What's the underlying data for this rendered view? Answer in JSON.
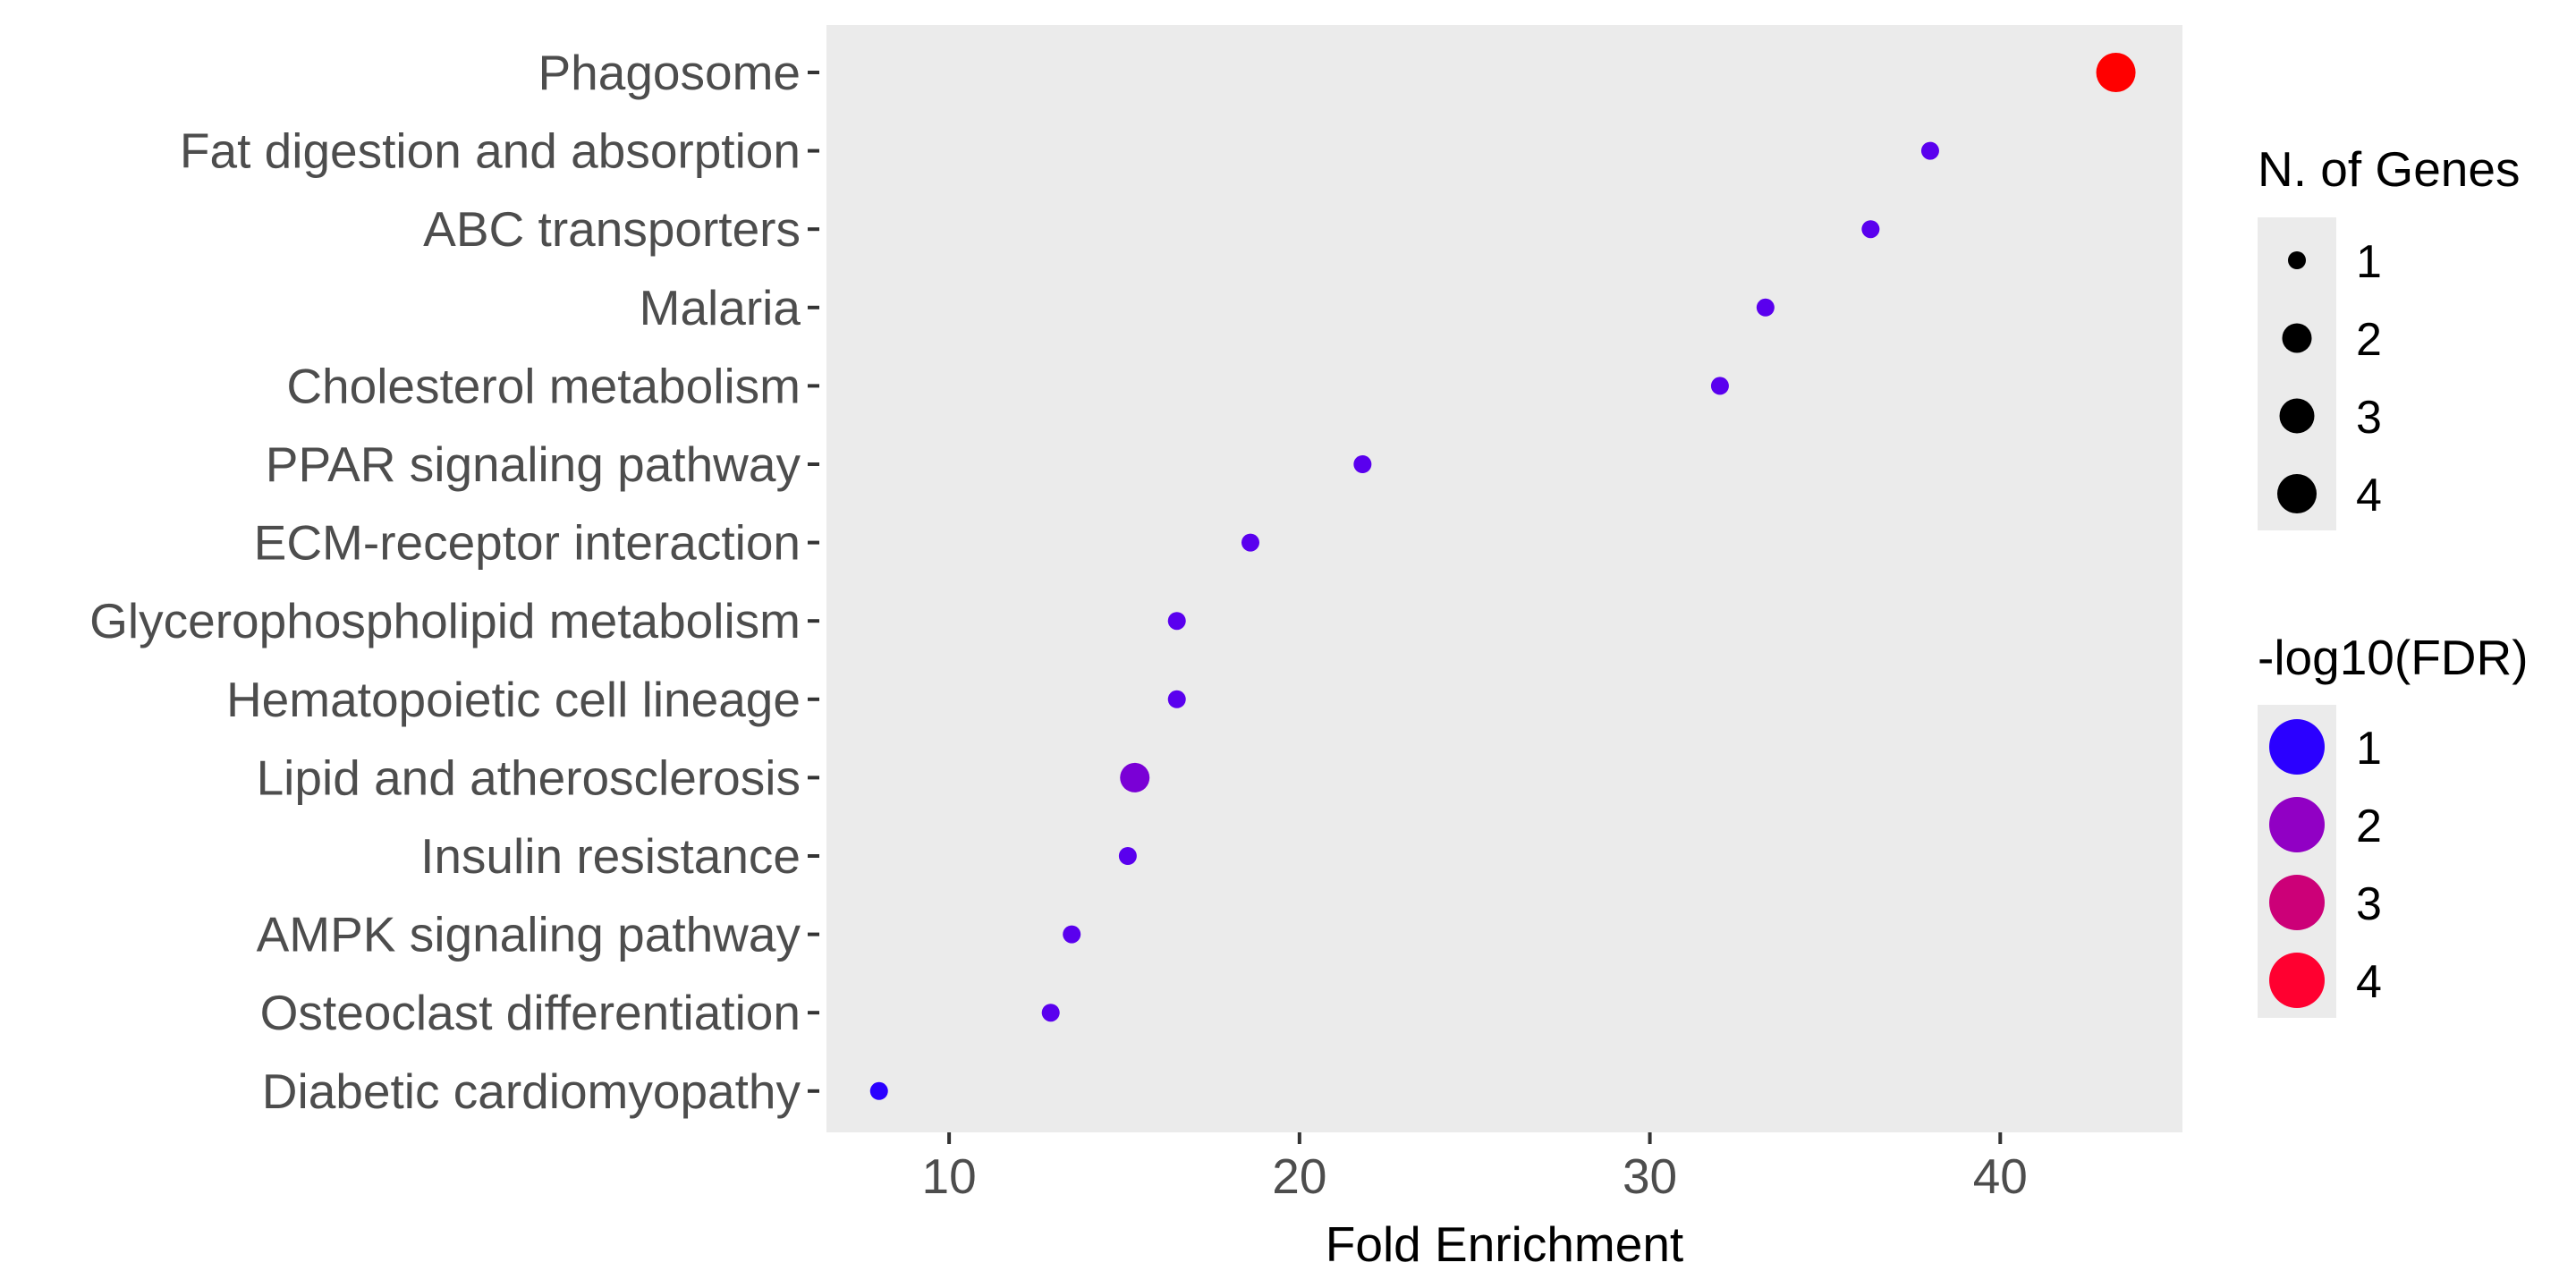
{
  "chart_data": {
    "type": "scatter",
    "title": "",
    "xlabel": "Fold Enrichment",
    "ylabel": "",
    "xlim": [
      6.5,
      45.2
    ],
    "xticks": [
      10,
      20,
      30,
      40
    ],
    "grid": false,
    "panel_background": "#ebebeb",
    "legend_placement": "right",
    "size_legend": {
      "title": "N. of Genes",
      "values": [
        1,
        2,
        3,
        4
      ]
    },
    "color_legend": {
      "title": "-log10(FDR)",
      "values": [
        1,
        2,
        3,
        4
      ],
      "colors": [
        "#2b00ff",
        "#9100c4",
        "#cc0078",
        "#ff0030"
      ]
    },
    "points": [
      {
        "term": "Phagosome",
        "fold_enrichment": 43.3,
        "n_genes": 4,
        "neg_log10_fdr": 4.6,
        "color": "#ff0000"
      },
      {
        "term": "Fat digestion and absorption",
        "fold_enrichment": 38.0,
        "n_genes": 1,
        "neg_log10_fdr": 1.1,
        "color": "#5a00ee"
      },
      {
        "term": "ABC transporters",
        "fold_enrichment": 36.3,
        "n_genes": 1,
        "neg_log10_fdr": 1.1,
        "color": "#5a00ee"
      },
      {
        "term": "Malaria",
        "fold_enrichment": 33.3,
        "n_genes": 1,
        "neg_log10_fdr": 1.1,
        "color": "#5a00ee"
      },
      {
        "term": "Cholesterol metabolism",
        "fold_enrichment": 32.0,
        "n_genes": 1,
        "neg_log10_fdr": 1.1,
        "color": "#5a00ee"
      },
      {
        "term": "PPAR signaling pathway",
        "fold_enrichment": 21.8,
        "n_genes": 1,
        "neg_log10_fdr": 1.1,
        "color": "#5a00ee"
      },
      {
        "term": "ECM-receptor interaction",
        "fold_enrichment": 18.6,
        "n_genes": 1,
        "neg_log10_fdr": 1.1,
        "color": "#5a00ee"
      },
      {
        "term": "Glycerophospholipid metabolism",
        "fold_enrichment": 16.5,
        "n_genes": 1,
        "neg_log10_fdr": 1.1,
        "color": "#5a00ee"
      },
      {
        "term": "Hematopoietic cell lineage",
        "fold_enrichment": 16.5,
        "n_genes": 1,
        "neg_log10_fdr": 1.1,
        "color": "#5a00ee"
      },
      {
        "term": "Lipid and atherosclerosis",
        "fold_enrichment": 15.3,
        "n_genes": 2,
        "neg_log10_fdr": 1.6,
        "color": "#7a00d6"
      },
      {
        "term": "Insulin resistance",
        "fold_enrichment": 15.1,
        "n_genes": 1,
        "neg_log10_fdr": 1.1,
        "color": "#5a00ee"
      },
      {
        "term": "AMPK signaling pathway",
        "fold_enrichment": 13.5,
        "n_genes": 1,
        "neg_log10_fdr": 1.1,
        "color": "#5a00ee"
      },
      {
        "term": "Osteoclast differentiation",
        "fold_enrichment": 12.9,
        "n_genes": 1,
        "neg_log10_fdr": 1.1,
        "color": "#5a00ee"
      },
      {
        "term": "Diabetic cardiomyopathy",
        "fold_enrichment": 8.0,
        "n_genes": 1,
        "neg_log10_fdr": 0.8,
        "color": "#2a00ff"
      }
    ]
  }
}
